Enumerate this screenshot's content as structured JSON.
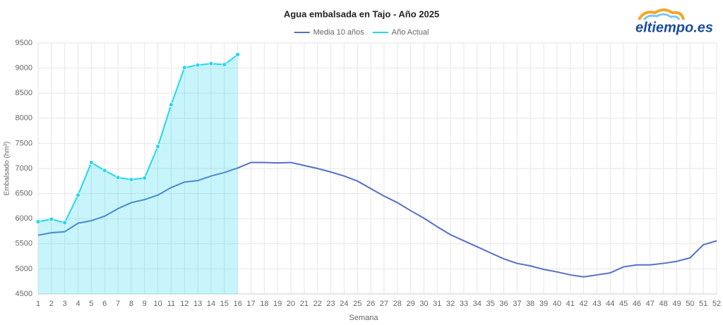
{
  "chart_data": {
    "type": "line",
    "title": "Agua embalsada en Tajo - Año 2025",
    "logo": "eltiempo.es",
    "xlabel": "Semana",
    "ylabel": "Embalsado (hm³)",
    "categories": [
      "1",
      "2",
      "3",
      "4",
      "5",
      "6",
      "7",
      "8",
      "9",
      "10",
      "11",
      "12",
      "13",
      "14",
      "15",
      "16",
      "17",
      "18",
      "19",
      "20",
      "21",
      "22",
      "23",
      "24",
      "25",
      "26",
      "27",
      "28",
      "29",
      "30",
      "31",
      "32",
      "33",
      "34",
      "35",
      "36",
      "37",
      "38",
      "39",
      "40",
      "41",
      "42",
      "43",
      "44",
      "45",
      "46",
      "47",
      "48",
      "49",
      "50",
      "51",
      "52"
    ],
    "series": [
      {
        "name": "Media 10 años",
        "color": "#5470c6",
        "area": false,
        "markers": false,
        "values": [
          5670,
          5720,
          5740,
          5910,
          5960,
          6050,
          6200,
          6320,
          6380,
          6470,
          6620,
          6730,
          6760,
          6850,
          6920,
          7010,
          7120,
          7120,
          7110,
          7120,
          7060,
          7000,
          6930,
          6850,
          6750,
          6600,
          6450,
          6320,
          6160,
          6010,
          5840,
          5680,
          5560,
          5440,
          5320,
          5200,
          5110,
          5060,
          4990,
          4940,
          4880,
          4840,
          4880,
          4920,
          5040,
          5080,
          5080,
          5110,
          5150,
          5220,
          5480,
          5560
        ]
      },
      {
        "name": "Año Actual",
        "color": "#22d7ef",
        "area": true,
        "markers": true,
        "values": [
          5940,
          5990,
          5920,
          6470,
          7120,
          6960,
          6820,
          6780,
          6810,
          7440,
          8270,
          9010,
          9060,
          9090,
          9070,
          9270,
          null,
          null,
          null,
          null,
          null,
          null,
          null,
          null,
          null,
          null,
          null,
          null,
          null,
          null,
          null,
          null,
          null,
          null,
          null,
          null,
          null,
          null,
          null,
          null,
          null,
          null,
          null,
          null,
          null,
          null,
          null,
          null,
          null,
          null,
          null,
          null
        ]
      }
    ],
    "ylim": [
      4500,
      9500
    ],
    "yticks": [
      4500,
      5000,
      5500,
      6000,
      6500,
      7000,
      7500,
      8000,
      8500,
      9000,
      9500
    ],
    "grid": true,
    "legend": "top"
  }
}
